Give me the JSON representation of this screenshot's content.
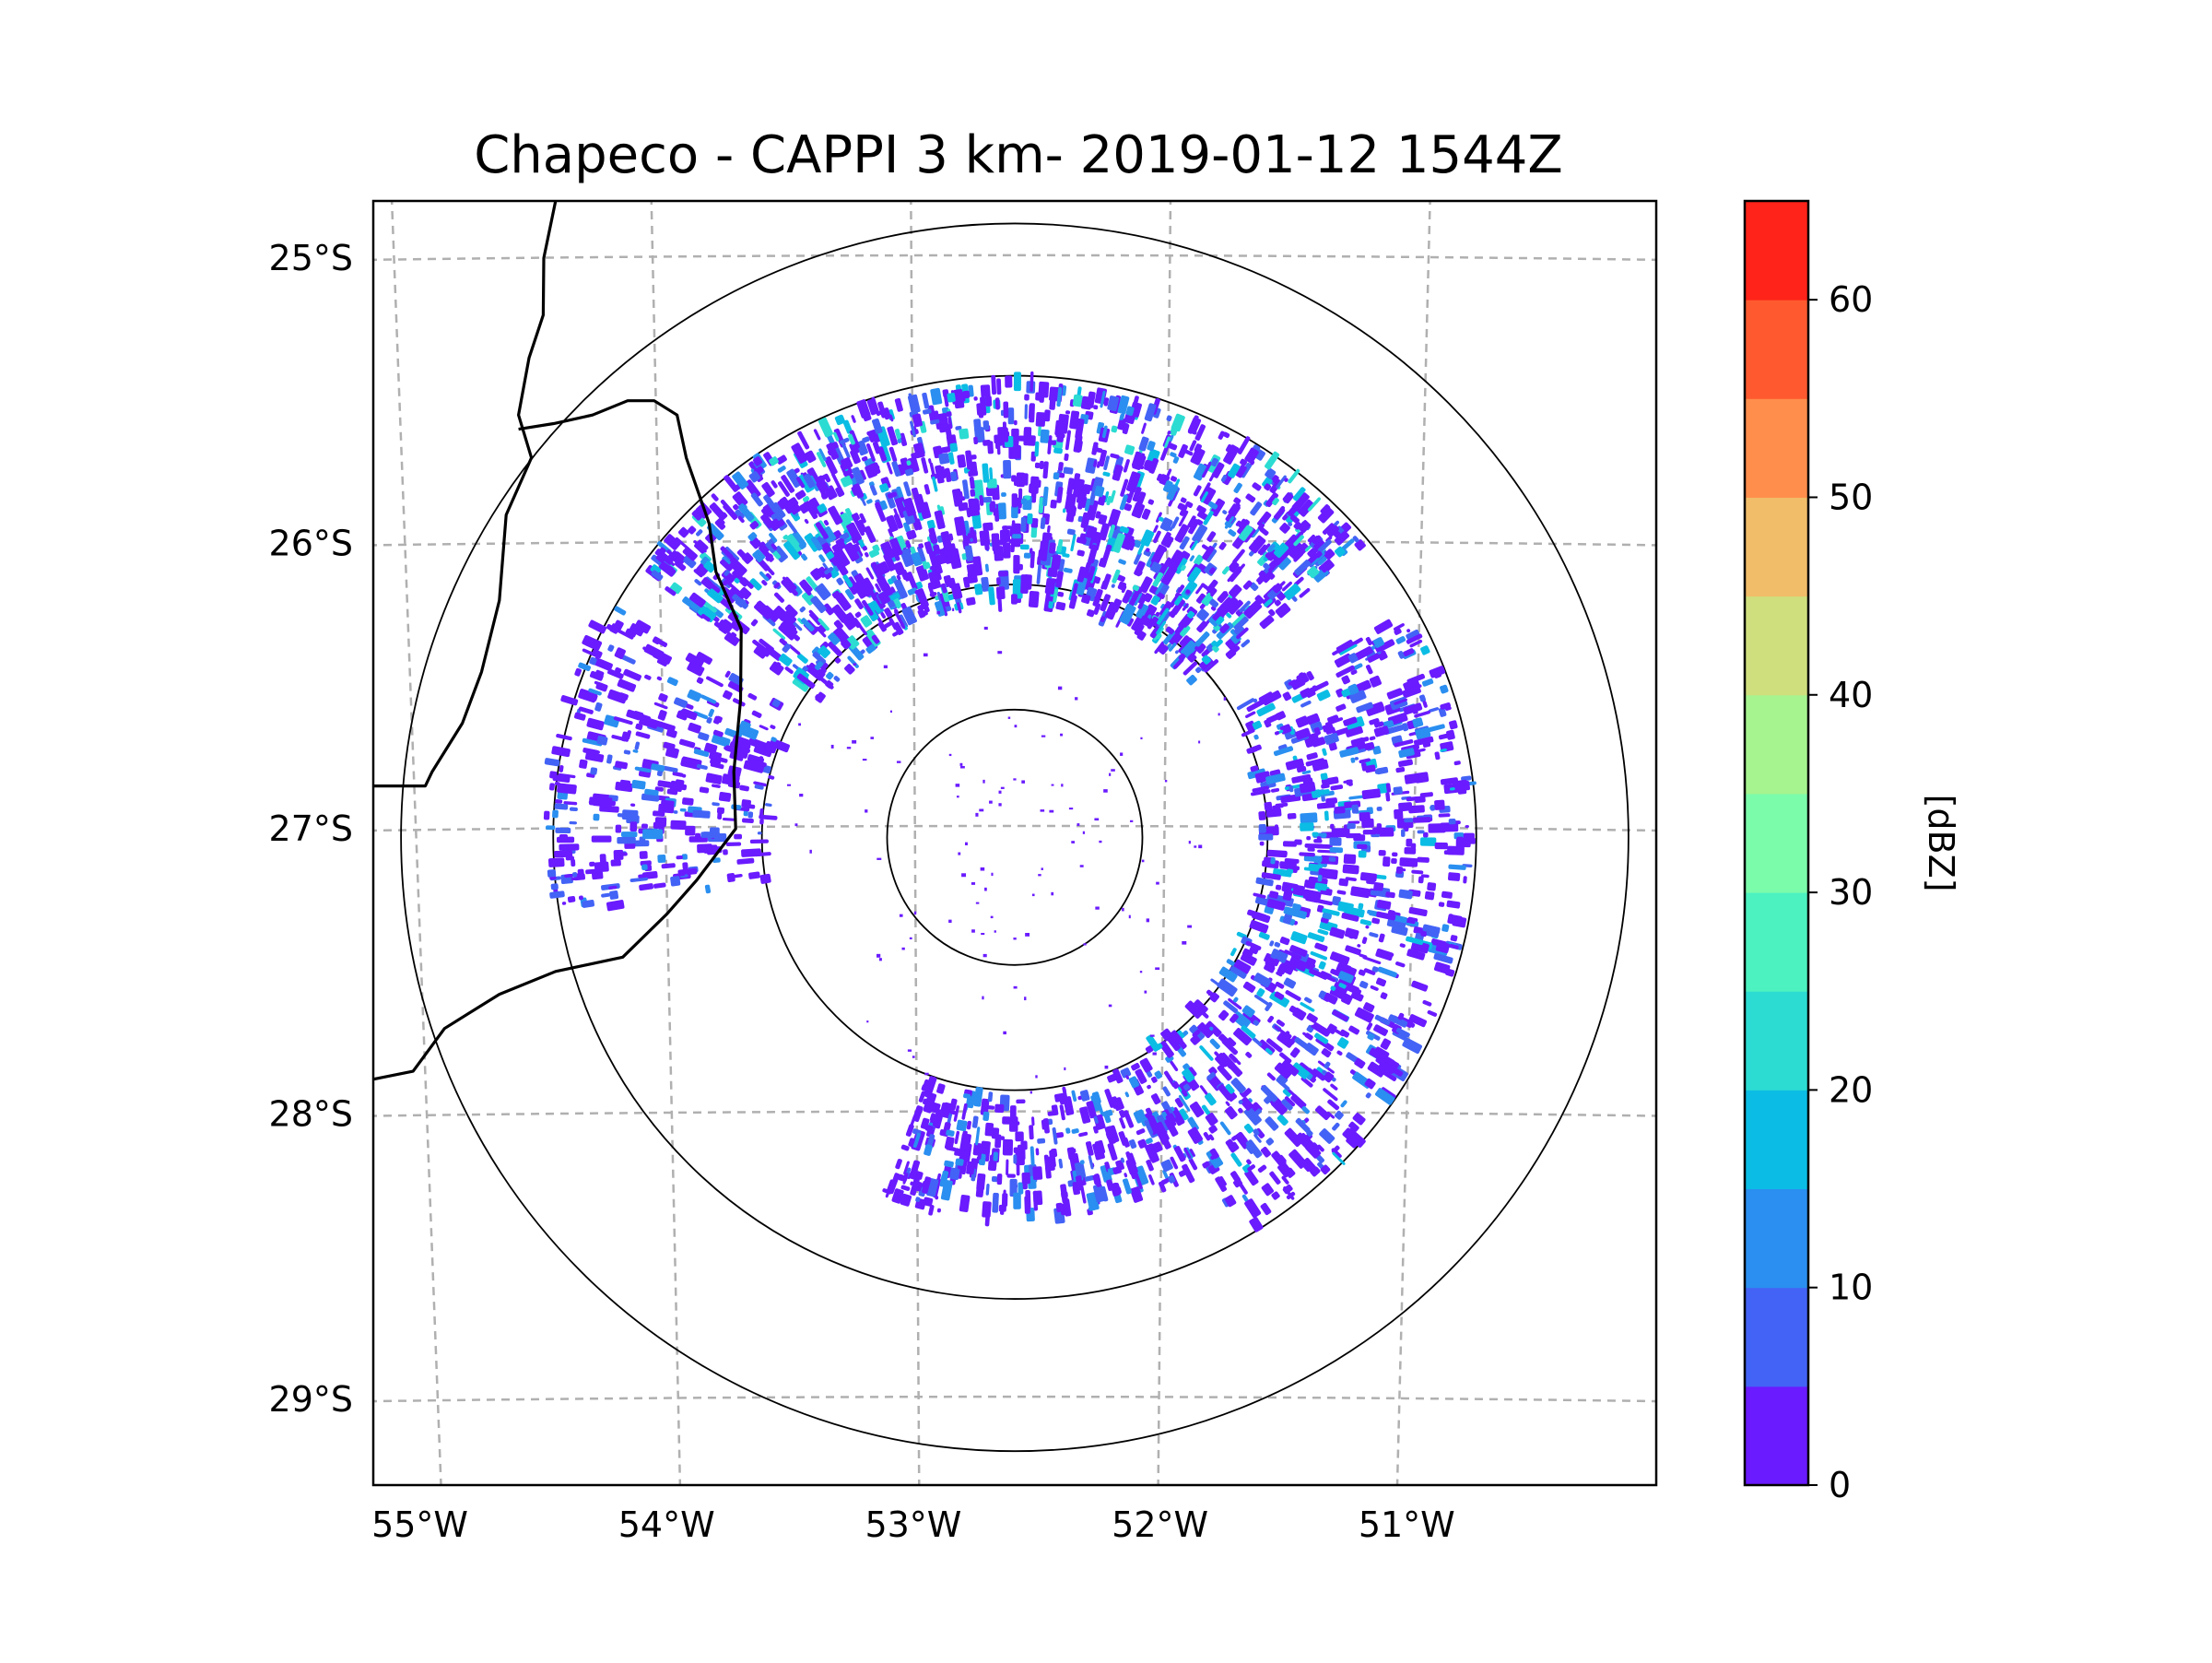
{
  "chart_data": {
    "type": "heatmap",
    "title": "Chapeco - CAPPI 3 km- 2019-01-12 1544Z",
    "projection": "map (lon/lat) with range rings around radar site",
    "center": {
      "lon": -52.6,
      "lat": -27.03
    },
    "xlim": [
      -55.2,
      -50.0
    ],
    "ylim": [
      -29.3,
      -24.8
    ],
    "x_ticks": [
      -55,
      -54,
      -53,
      -52,
      -51
    ],
    "x_tick_labels": [
      "55°W",
      "54°W",
      "53°W",
      "52°W",
      "51°W"
    ],
    "y_ticks": [
      -25,
      -26,
      -27,
      -28,
      -29
    ],
    "y_tick_labels": [
      "25°S",
      "26°S",
      "27°S",
      "28°S",
      "29°S"
    ],
    "grid": true,
    "range_rings_deg_lon": [
      0.52,
      1.03,
      1.88,
      2.5
    ],
    "colorbar": {
      "label": "[dBZ]",
      "min": 0,
      "max": 65,
      "ticks": [
        0,
        10,
        20,
        30,
        40,
        50,
        60
      ],
      "tick_labels": [
        "0",
        "10",
        "20",
        "30",
        "40",
        "50",
        "60"
      ],
      "bins": [
        0,
        5,
        10,
        15,
        20,
        25,
        30,
        35,
        40,
        45,
        50,
        55,
        60,
        65
      ],
      "colors": [
        "#6a1bff",
        "#4363f6",
        "#2a8ff0",
        "#0bbde4",
        "#2cdcd2",
        "#4cf2c0",
        "#7bfcab",
        "#a6f48f",
        "#cfdf7d",
        "#f1bd69",
        "#ff8e4c",
        "#ff5a2f",
        "#ff2319"
      ]
    },
    "echo_regions": [
      {
        "name": "north-arc",
        "dbz_range": [
          0,
          25
        ],
        "azimuth_deg": [
          -55,
          50
        ],
        "range_deg": [
          0.95,
          1.85
        ]
      },
      {
        "name": "east-arc",
        "dbz_range": [
          0,
          20
        ],
        "azimuth_deg": [
          60,
          150
        ],
        "range_deg": [
          1.0,
          1.85
        ]
      },
      {
        "name": "south-cluster",
        "dbz_range": [
          0,
          15
        ],
        "azimuth_deg": [
          150,
          200
        ],
        "range_deg": [
          1.05,
          1.55
        ]
      },
      {
        "name": "west-scatter",
        "dbz_range": [
          0,
          15
        ],
        "azimuth_deg": [
          -100,
          -60
        ],
        "range_deg": [
          1.0,
          1.9
        ]
      }
    ]
  }
}
